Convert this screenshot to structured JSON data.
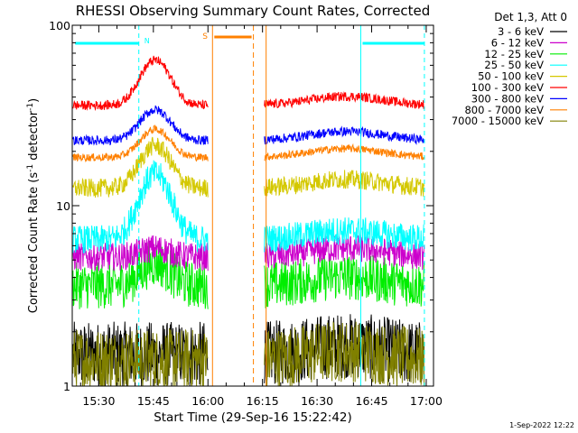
{
  "chart_data": {
    "type": "line",
    "title": "RHESSI Observing Summary Count Rates, Corrected",
    "xlabel": "Start Time (29-Sep-16 15:22:42)",
    "ylabel_main": "Corrected Count Rate (s",
    "ylabel_sup1": "-1",
    "ylabel_mid": " detector",
    "ylabel_sup2": "-1",
    "ylabel_end": ")",
    "yscale": "log",
    "ylim": [
      1,
      100
    ],
    "xlim_minutes": [
      22.7,
      122
    ],
    "x_tick_labels": [
      {
        "minute": 30,
        "label": "15:30"
      },
      {
        "minute": 45,
        "label": "15:45"
      },
      {
        "minute": 60,
        "label": "16:00"
      },
      {
        "minute": 75,
        "label": "16:15"
      },
      {
        "minute": 90,
        "label": "16:30"
      },
      {
        "minute": 105,
        "label": "16:45"
      },
      {
        "minute": 120,
        "label": "17:00"
      }
    ],
    "y_tick_labels": [
      {
        "value": 1,
        "label": "1"
      },
      {
        "value": 10,
        "label": "10"
      },
      {
        "value": 100,
        "label": "100"
      }
    ],
    "legend_header": "Det 1,3, Att 0",
    "legend_position": "right",
    "series": [
      {
        "name": "3 - 6 keV",
        "color": "#000000",
        "baseline": 1.5,
        "peak": 0,
        "noise": 0.42
      },
      {
        "name": "6 - 12 keV",
        "color": "#cc00cc",
        "baseline": 5.2,
        "peak": 0.6,
        "noise": 0.18
      },
      {
        "name": "12 - 25 keV",
        "color": "#00ee00",
        "baseline": 3.6,
        "peak": 1.2,
        "noise": 0.3
      },
      {
        "name": "25 - 50 keV",
        "color": "#00ffff",
        "baseline": 6.5,
        "peak": 8.5,
        "noise": 0.18
      },
      {
        "name": "50 - 100 keV",
        "color": "#d4c800",
        "baseline": 12.5,
        "peak": 9,
        "noise": 0.12
      },
      {
        "name": "100 - 300 keV",
        "color": "#ff0000",
        "baseline": 36,
        "peak": 28,
        "noise": 0.06
      },
      {
        "name": "300 - 800 keV",
        "color": "#0000ff",
        "baseline": 23,
        "peak": 11,
        "noise": 0.06
      },
      {
        "name": "800 - 7000 keV",
        "color": "#ff8000",
        "baseline": 18.5,
        "peak": 8,
        "noise": 0.05
      },
      {
        "name": "7000 - 15000 keV",
        "color": "#808000",
        "baseline": 1.4,
        "peak": 0,
        "noise": 0.4
      }
    ],
    "gap_minutes": [
      60,
      75
    ],
    "saa": {
      "label": "S",
      "color": "#ff8000",
      "range_minutes": [
        61.5,
        72
      ]
    },
    "night_segments": [
      {
        "label": "N",
        "color": "#00ffff",
        "range_minutes": [
          23,
          41
        ]
      },
      {
        "label": "",
        "color": "#00ffff",
        "range_minutes": [
          102,
          119.5
        ]
      }
    ],
    "night_markers_minutes": [
      41,
      102,
      119.5
    ],
    "flare": {
      "center_minute": 45.5,
      "width_minutes": 5.5
    },
    "timestamp": "1-Sep-2022 12:22"
  }
}
